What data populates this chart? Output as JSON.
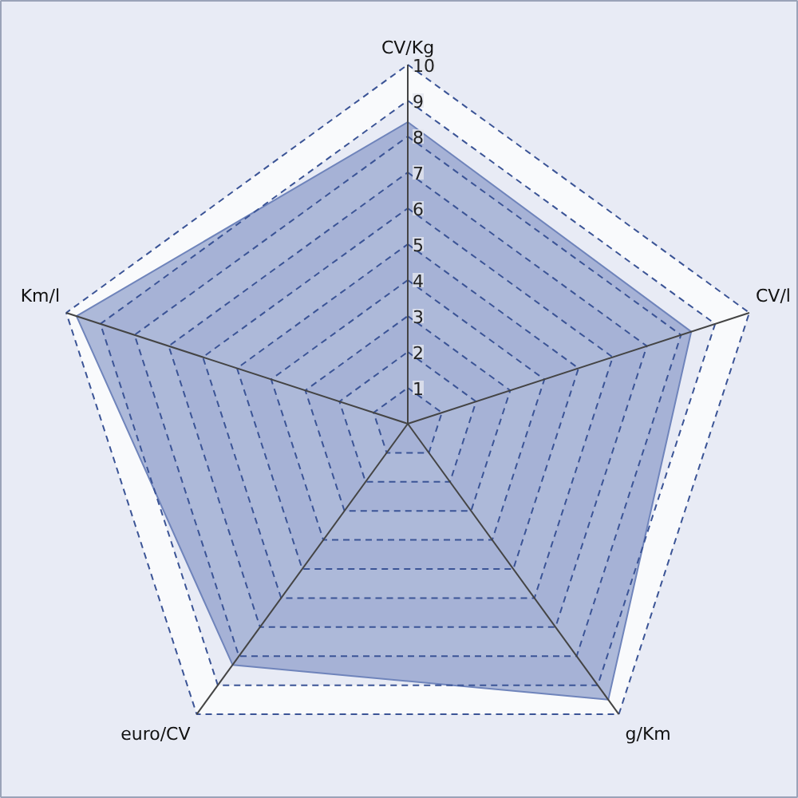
{
  "chart_data": {
    "type": "radar",
    "categories": [
      "CV/Kg",
      "CV/l",
      "g/Km",
      "euro/CV",
      "Km/l"
    ],
    "series": [
      {
        "color": "#6f84bb",
        "values": [
          8.4,
          8.3,
          9.5,
          8.3,
          9.7
        ]
      }
    ],
    "ylim": [
      0,
      10
    ],
    "yticks": [
      1,
      2,
      3,
      4,
      5,
      6,
      7,
      8,
      9,
      10
    ],
    "grid": true
  }
}
